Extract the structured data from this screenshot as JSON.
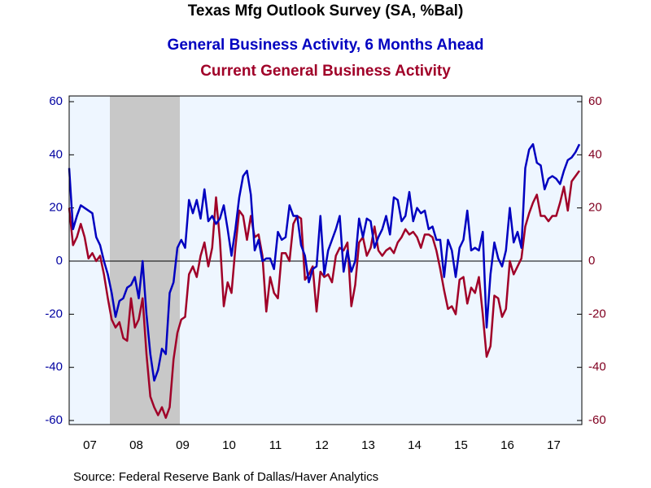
{
  "chart_data": {
    "type": "line",
    "title": "Texas Mfg Outlook Survey (SA, %Bal)",
    "source": "Source:  Federal Reserve Bank of Dallas/Haver Analytics",
    "categories": [
      null,
      null,
      null,
      null,
      null,
      null,
      "07",
      null,
      null,
      null,
      null,
      null,
      null,
      null,
      null,
      null,
      null,
      null,
      "08",
      null,
      null,
      null,
      null,
      null,
      null,
      null,
      null,
      null,
      null,
      null,
      "09",
      null,
      null,
      null,
      null,
      null,
      null,
      null,
      null,
      null,
      null,
      null,
      "10",
      null,
      null,
      null,
      null,
      null,
      null,
      null,
      null,
      null,
      null,
      null,
      "11",
      null,
      null,
      null,
      null,
      null,
      null,
      null,
      null,
      null,
      null,
      null,
      "12",
      null,
      null,
      null,
      null,
      null,
      null,
      null,
      null,
      null,
      null,
      null,
      "13",
      null,
      null,
      null,
      null,
      null,
      null,
      null,
      null,
      null,
      null,
      null,
      "14",
      null,
      null,
      null,
      null,
      null,
      null,
      null,
      null,
      null,
      null,
      null,
      "15",
      null,
      null,
      null,
      null,
      null,
      null,
      null,
      null,
      null,
      null,
      null,
      "16",
      null,
      null,
      null,
      null,
      null,
      null,
      null,
      null,
      null,
      null,
      null,
      "17",
      null,
      null,
      null,
      null,
      null,
      null
    ],
    "series": [
      {
        "name": "General Business Activity, 6 Months Ahead",
        "color": "#0000c0",
        "axis": "y",
        "values": [
          35,
          12,
          17,
          21,
          20,
          19,
          18,
          9,
          6,
          0,
          -5,
          -12,
          -21,
          -15,
          -14,
          -10,
          -9,
          -6,
          -14,
          0,
          -20,
          -35,
          -45,
          -41,
          -33,
          -35,
          -12,
          -8,
          5,
          8,
          5,
          23,
          18,
          23,
          16,
          27,
          15,
          17,
          14,
          16,
          21,
          12,
          2,
          12,
          24,
          32,
          34,
          25,
          4,
          8,
          0,
          1,
          1,
          -3,
          11,
          8,
          9,
          21,
          17,
          17,
          6,
          2,
          -8,
          -3,
          -2,
          17,
          -5,
          4,
          8,
          12,
          17,
          -4,
          4,
          -4,
          0,
          16,
          9,
          16,
          15,
          5,
          9,
          12,
          17,
          10,
          24,
          23,
          15,
          17,
          26,
          15,
          20,
          18,
          19,
          12,
          13,
          8,
          8,
          -6,
          8,
          4,
          -6,
          5,
          8,
          19,
          4,
          5,
          4,
          11,
          -25,
          -5,
          7,
          1,
          -2,
          4,
          20,
          7,
          11,
          5,
          35,
          42,
          44,
          37,
          36,
          27,
          31,
          32,
          31,
          29,
          34,
          38,
          39,
          41,
          44
        ]
      },
      {
        "name": "Current General Business Activity",
        "color": "#a00028",
        "axis": "y2",
        "values": [
          20,
          6,
          9,
          14,
          9,
          1,
          3,
          0,
          2,
          -5,
          -14,
          -22,
          -25,
          -23,
          -29,
          -30,
          -14,
          -25,
          -22,
          -14,
          -35,
          -51,
          -55,
          -58,
          -55,
          -59,
          -55,
          -37,
          -27,
          -22,
          -21,
          -5,
          -2,
          -6,
          2,
          7,
          -2,
          5,
          24,
          8,
          -17,
          -8,
          -12,
          5,
          19,
          17,
          8,
          17,
          9,
          10,
          2,
          -19,
          -6,
          -12,
          -14,
          3,
          3,
          0,
          14,
          17,
          16,
          -7,
          -5,
          -2,
          -19,
          -4,
          -6,
          -5,
          -8,
          2,
          5,
          4,
          7,
          -17,
          -9,
          7,
          9,
          2,
          5,
          13,
          4,
          2,
          4,
          5,
          3,
          7,
          9,
          12,
          10,
          11,
          9,
          5,
          10,
          10,
          9,
          4,
          -3,
          -11,
          -18,
          -17,
          -20,
          -7,
          -6,
          -16,
          -10,
          -12,
          -6,
          -20,
          -36,
          -32,
          -13,
          -14,
          -21,
          -18,
          0,
          -5,
          -2,
          1,
          13,
          18,
          22,
          25,
          17,
          17,
          15,
          17,
          17,
          22,
          28,
          19,
          30,
          32,
          34
        ]
      }
    ],
    "ylim": [
      -60,
      60
    ],
    "yticks": [
      -60,
      -40,
      -20,
      0,
      20,
      40,
      60
    ],
    "y2lim": [
      -60,
      60
    ],
    "y2ticks": [
      -60,
      -40,
      -20,
      0,
      20,
      40,
      60
    ],
    "ytick_color": "#0000a0",
    "y2tick_color": "#800020"
  }
}
